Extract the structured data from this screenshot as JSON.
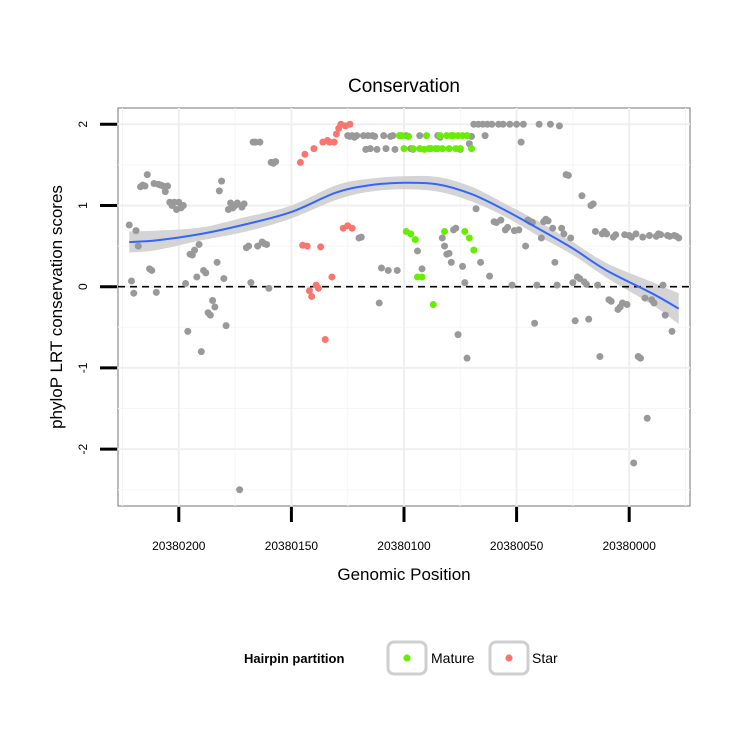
{
  "chart_data": {
    "type": "scatter",
    "title": "Conservation",
    "xlabel": "Genomic Position",
    "ylabel": "phyloP LRT conservation scores",
    "x_reversed": true,
    "xlim": [
      20380227,
      20379973
    ],
    "ylim": [
      -2.7,
      2.2
    ],
    "xticks": [
      20380200,
      20380150,
      20380100,
      20380050,
      20380000
    ],
    "xtick_labels": [
      "20380200",
      "20380150",
      "20380100",
      "20380050",
      "20380000"
    ],
    "yticks": [
      -2,
      -1,
      0,
      1,
      2
    ],
    "ytick_labels": [
      "-2",
      "-1",
      "0",
      "1",
      "2"
    ],
    "reference_line": {
      "y": 0,
      "style": "dashed"
    },
    "colors": {
      "Other": "#999999",
      "Mature": "#66ee00",
      "Star": "#f8766d",
      "smooth": "#3366ff",
      "band": "#cccccc"
    },
    "legend": {
      "title": "Hairpin partition",
      "entries": [
        {
          "label": "Mature",
          "color": "#66ee00"
        },
        {
          "label": "Star",
          "color": "#f8766d"
        }
      ]
    },
    "smooth": {
      "method": "loess",
      "x": [
        20380222,
        20380210,
        20380190,
        20380170,
        20380150,
        20380130,
        20380115,
        20380100,
        20380085,
        20380070,
        20380055,
        20380040,
        20380025,
        20380010,
        20379990,
        20379978
      ],
      "y": [
        0.55,
        0.57,
        0.65,
        0.77,
        0.92,
        1.16,
        1.25,
        1.28,
        1.26,
        1.14,
        0.94,
        0.71,
        0.47,
        0.2,
        -0.08,
        -0.27
      ],
      "ymin": [
        0.42,
        0.45,
        0.57,
        0.68,
        0.84,
        1.07,
        1.17,
        1.2,
        1.17,
        1.05,
        0.86,
        0.62,
        0.39,
        0.11,
        -0.22,
        -0.46
      ],
      "ymax": [
        0.68,
        0.69,
        0.73,
        0.86,
        1.0,
        1.25,
        1.33,
        1.36,
        1.35,
        1.23,
        1.02,
        0.8,
        0.55,
        0.29,
        0.06,
        -0.08
      ]
    },
    "series": [
      {
        "name": "Other",
        "points": [
          [
            20380222,
            0.76
          ],
          [
            20380221,
            0.07
          ],
          [
            20380220,
            -0.08
          ],
          [
            20380219,
            0.69
          ],
          [
            20380218,
            0.5
          ],
          [
            20380217,
            1.23
          ],
          [
            20380216,
            1.25
          ],
          [
            20380215,
            1.24
          ],
          [
            20380214,
            1.38
          ],
          [
            20380213,
            0.22
          ],
          [
            20380212,
            0.2
          ],
          [
            20380211,
            1.27
          ],
          [
            20380210,
            -0.07
          ],
          [
            20380209,
            1.26
          ],
          [
            20380208,
            1.25
          ],
          [
            20380207,
            1.24
          ],
          [
            20380206,
            1.17
          ],
          [
            20380205,
            1.24
          ],
          [
            20380204,
            1.04
          ],
          [
            20380203,
            1.0
          ],
          [
            20380202,
            1.04
          ],
          [
            20380201,
            0.95
          ],
          [
            20380200,
            1.04
          ],
          [
            20380199,
            0.97
          ],
          [
            20380198,
            1.0
          ],
          [
            20380197,
            0.04
          ],
          [
            20380196,
            -0.55
          ],
          [
            20380195,
            0.4
          ],
          [
            20380194,
            0.39
          ],
          [
            20380193,
            0.45
          ],
          [
            20380192,
            0.12
          ],
          [
            20380191,
            0.52
          ],
          [
            20380190,
            -0.8
          ],
          [
            20380189,
            0.2
          ],
          [
            20380188,
            0.17
          ],
          [
            20380187,
            -0.32
          ],
          [
            20380186,
            -0.35
          ],
          [
            20380185,
            -0.17
          ],
          [
            20380184,
            -0.25
          ],
          [
            20380183,
            0.3
          ],
          [
            20380182,
            1.18
          ],
          [
            20380181,
            1.3
          ],
          [
            20380180,
            0.1
          ],
          [
            20380179,
            -0.48
          ],
          [
            20380178,
            0.95
          ],
          [
            20380177,
            1.03
          ],
          [
            20380176,
            0.97
          ],
          [
            20380175,
            1.0
          ],
          [
            20380174,
            1.03
          ],
          [
            20380173,
            -2.5
          ],
          [
            20380172,
            0.98
          ],
          [
            20380171,
            1.02
          ],
          [
            20380170,
            0.48
          ],
          [
            20380169,
            0.5
          ],
          [
            20380168,
            0.05
          ],
          [
            20380167,
            1.78
          ],
          [
            20380166,
            1.78
          ],
          [
            20380165,
            0.5
          ],
          [
            20380164,
            1.78
          ],
          [
            20380163,
            0.55
          ],
          [
            20380162,
            0.53
          ],
          [
            20380161,
            0.52
          ],
          [
            20380160,
            -0.02
          ],
          [
            20380159,
            1.53
          ],
          [
            20380158,
            1.52
          ],
          [
            20380157,
            1.54
          ],
          [
            20380125,
            1.86
          ],
          [
            20380124,
            1.85
          ],
          [
            20380123,
            1.86
          ],
          [
            20380122,
            1.84
          ],
          [
            20380121,
            1.86
          ],
          [
            20380120,
            0.6
          ],
          [
            20380119,
            0.61
          ],
          [
            20380118,
            1.86
          ],
          [
            20380117,
            1.69
          ],
          [
            20380116,
            1.86
          ],
          [
            20380115,
            1.7
          ],
          [
            20380114,
            1.86
          ],
          [
            20380113,
            1.85
          ],
          [
            20380112,
            1.69
          ],
          [
            20380111,
            -0.2
          ],
          [
            20380110,
            0.23
          ],
          [
            20380109,
            1.86
          ],
          [
            20380108,
            1.7
          ],
          [
            20380107,
            0.2
          ],
          [
            20380106,
            1.85
          ],
          [
            20380105,
            1.86
          ],
          [
            20380104,
            1.69
          ],
          [
            20380103,
            0.2
          ],
          [
            20380099,
            1.86
          ],
          [
            20380098,
            1.85
          ],
          [
            20380097,
            1.7
          ],
          [
            20380096,
            1.69
          ],
          [
            20380094,
            0.44
          ],
          [
            20380093,
            1.86
          ],
          [
            20380092,
            0.22
          ],
          [
            20380085,
            1.86
          ],
          [
            20380084,
            1.84
          ],
          [
            20380083,
            0.6
          ],
          [
            20380082,
            0.5
          ],
          [
            20380081,
            0.4
          ],
          [
            20380080,
            0.41
          ],
          [
            20380079,
            0.3
          ],
          [
            20380078,
            0.7
          ],
          [
            20380077,
            0.72
          ],
          [
            20380076,
            -0.59
          ],
          [
            20380075,
            1.69
          ],
          [
            20380074,
            0.25
          ],
          [
            20380073,
            0.05
          ],
          [
            20380072,
            -0.88
          ],
          [
            20380071,
            1.76
          ],
          [
            20380070,
            1.85
          ],
          [
            20380069,
            2.0
          ],
          [
            20380068,
            0.96
          ],
          [
            20380067,
            2.0
          ],
          [
            20380066,
            0.3
          ],
          [
            20380065,
            2.0
          ],
          [
            20380064,
            1.86
          ],
          [
            20380063,
            2.0
          ],
          [
            20380062,
            0.13
          ],
          [
            20380061,
            2.0
          ],
          [
            20380060,
            0.8
          ],
          [
            20380059,
            0.79
          ],
          [
            20380058,
            2.0
          ],
          [
            20380057,
            0.82
          ],
          [
            20380056,
            2.0
          ],
          [
            20380055,
            0.7
          ],
          [
            20380054,
            0.73
          ],
          [
            20380053,
            2.0
          ],
          [
            20380052,
            0.02
          ],
          [
            20380051,
            0.69
          ],
          [
            20380050,
            2.0
          ],
          [
            20380049,
            0.7
          ],
          [
            20380048,
            1.78
          ],
          [
            20380047,
            2.0
          ],
          [
            20380046,
            0.5
          ],
          [
            20380045,
            0.82
          ],
          [
            20380044,
            0.8
          ],
          [
            20380043,
            0.79
          ],
          [
            20380042,
            -0.45
          ],
          [
            20380041,
            0.02
          ],
          [
            20380040,
            2.0
          ],
          [
            20380039,
            0.6
          ],
          [
            20380038,
            0.8
          ],
          [
            20380037,
            0.83
          ],
          [
            20380036,
            0.81
          ],
          [
            20380035,
            2.0
          ],
          [
            20380034,
            0.72
          ],
          [
            20380033,
            0.3
          ],
          [
            20380032,
            0.02
          ],
          [
            20380031,
            1.98
          ],
          [
            20380030,
            0.72
          ],
          [
            20380029,
            0.65
          ],
          [
            20380028,
            1.38
          ],
          [
            20380027,
            1.37
          ],
          [
            20380026,
            0.6
          ],
          [
            20380025,
            0.05
          ],
          [
            20380024,
            -0.42
          ],
          [
            20380023,
            0.12
          ],
          [
            20380022,
            0.1
          ],
          [
            20380021,
            1.12
          ],
          [
            20380020,
            0.06
          ],
          [
            20380019,
            0.03
          ],
          [
            20380018,
            -0.4
          ],
          [
            20380017,
            1.0
          ],
          [
            20380016,
            1.02
          ],
          [
            20380015,
            0.68
          ],
          [
            20380014,
            0.02
          ],
          [
            20380013,
            -0.86
          ],
          [
            20380012,
            0.65
          ],
          [
            20380011,
            0.68
          ],
          [
            20380010,
            0.65
          ],
          [
            20380009,
            -0.16
          ],
          [
            20380008,
            -0.18
          ],
          [
            20380007,
            0.61
          ],
          [
            20380006,
            0.64
          ],
          [
            20380005,
            -0.28
          ],
          [
            20380004,
            -0.25
          ],
          [
            20380003,
            -0.2
          ],
          [
            20380002,
            0.64
          ],
          [
            20380001,
            -0.22
          ],
          [
            20380000,
            0.63
          ],
          [
            20379999,
            0.61
          ],
          [
            20379998,
            -2.17
          ],
          [
            20379997,
            0.65
          ],
          [
            20379996,
            -0.86
          ],
          [
            20379995,
            -0.88
          ],
          [
            20379994,
            0.61
          ],
          [
            20379993,
            -0.14
          ],
          [
            20379992,
            -1.62
          ],
          [
            20379991,
            0.63
          ],
          [
            20379990,
            -0.16
          ],
          [
            20379989,
            -0.2
          ],
          [
            20379988,
            0.62
          ],
          [
            20379987,
            0.65
          ],
          [
            20379986,
            0.64
          ],
          [
            20379985,
            0.02
          ],
          [
            20379984,
            -0.35
          ],
          [
            20379983,
            0.63
          ],
          [
            20379982,
            0.62
          ],
          [
            20379981,
            -0.55
          ],
          [
            20379980,
            0.63
          ],
          [
            20379979,
            0.62
          ],
          [
            20379978,
            0.6
          ]
        ]
      },
      {
        "name": "Mature",
        "points": [
          [
            20380102,
            1.86
          ],
          [
            20380101,
            1.86
          ],
          [
            20380100,
            1.7
          ],
          [
            20380099,
            0.68
          ],
          [
            20380098,
            1.85
          ],
          [
            20380097,
            0.65
          ],
          [
            20380096,
            1.7
          ],
          [
            20380095,
            0.58
          ],
          [
            20380094,
            0.12
          ],
          [
            20380093,
            1.7
          ],
          [
            20380092,
            0.12
          ],
          [
            20380091,
            1.69
          ],
          [
            20380090,
            1.86
          ],
          [
            20380089,
            1.7
          ],
          [
            20380088,
            1.7
          ],
          [
            20380087,
            -0.22
          ],
          [
            20380086,
            1.7
          ],
          [
            20380085,
            1.7
          ],
          [
            20380084,
            1.86
          ],
          [
            20380083,
            1.7
          ],
          [
            20380082,
            0.68
          ],
          [
            20380081,
            1.86
          ],
          [
            20380080,
            1.7
          ],
          [
            20380079,
            1.86
          ],
          [
            20380078,
            1.86
          ],
          [
            20380077,
            1.7
          ],
          [
            20380076,
            1.86
          ],
          [
            20380075,
            1.7
          ],
          [
            20380074,
            1.86
          ],
          [
            20380073,
            0.68
          ],
          [
            20380072,
            1.86
          ],
          [
            20380071,
            0.6
          ],
          [
            20380070,
            1.7
          ],
          [
            20380069,
            0.45
          ]
        ]
      },
      {
        "name": "Star",
        "points": [
          [
            20380146,
            1.53
          ],
          [
            20380145,
            0.51
          ],
          [
            20380144,
            1.63
          ],
          [
            20380143,
            0.5
          ],
          [
            20380142,
            -0.05
          ],
          [
            20380141,
            -0.12
          ],
          [
            20380140,
            1.7
          ],
          [
            20380139,
            0.02
          ],
          [
            20380138,
            -0.02
          ],
          [
            20380137,
            0.49
          ],
          [
            20380136,
            1.78
          ],
          [
            20380135,
            -0.65
          ],
          [
            20380134,
            1.8
          ],
          [
            20380133,
            1.78
          ],
          [
            20380132,
            0.12
          ],
          [
            20380131,
            1.78
          ],
          [
            20380130,
            1.88
          ],
          [
            20380129,
            1.95
          ],
          [
            20380128,
            2.0
          ],
          [
            20380127,
            0.72
          ],
          [
            20380126,
            1.98
          ],
          [
            20380125,
            0.75
          ],
          [
            20380124,
            2.0
          ],
          [
            20380123,
            0.72
          ]
        ]
      }
    ]
  }
}
